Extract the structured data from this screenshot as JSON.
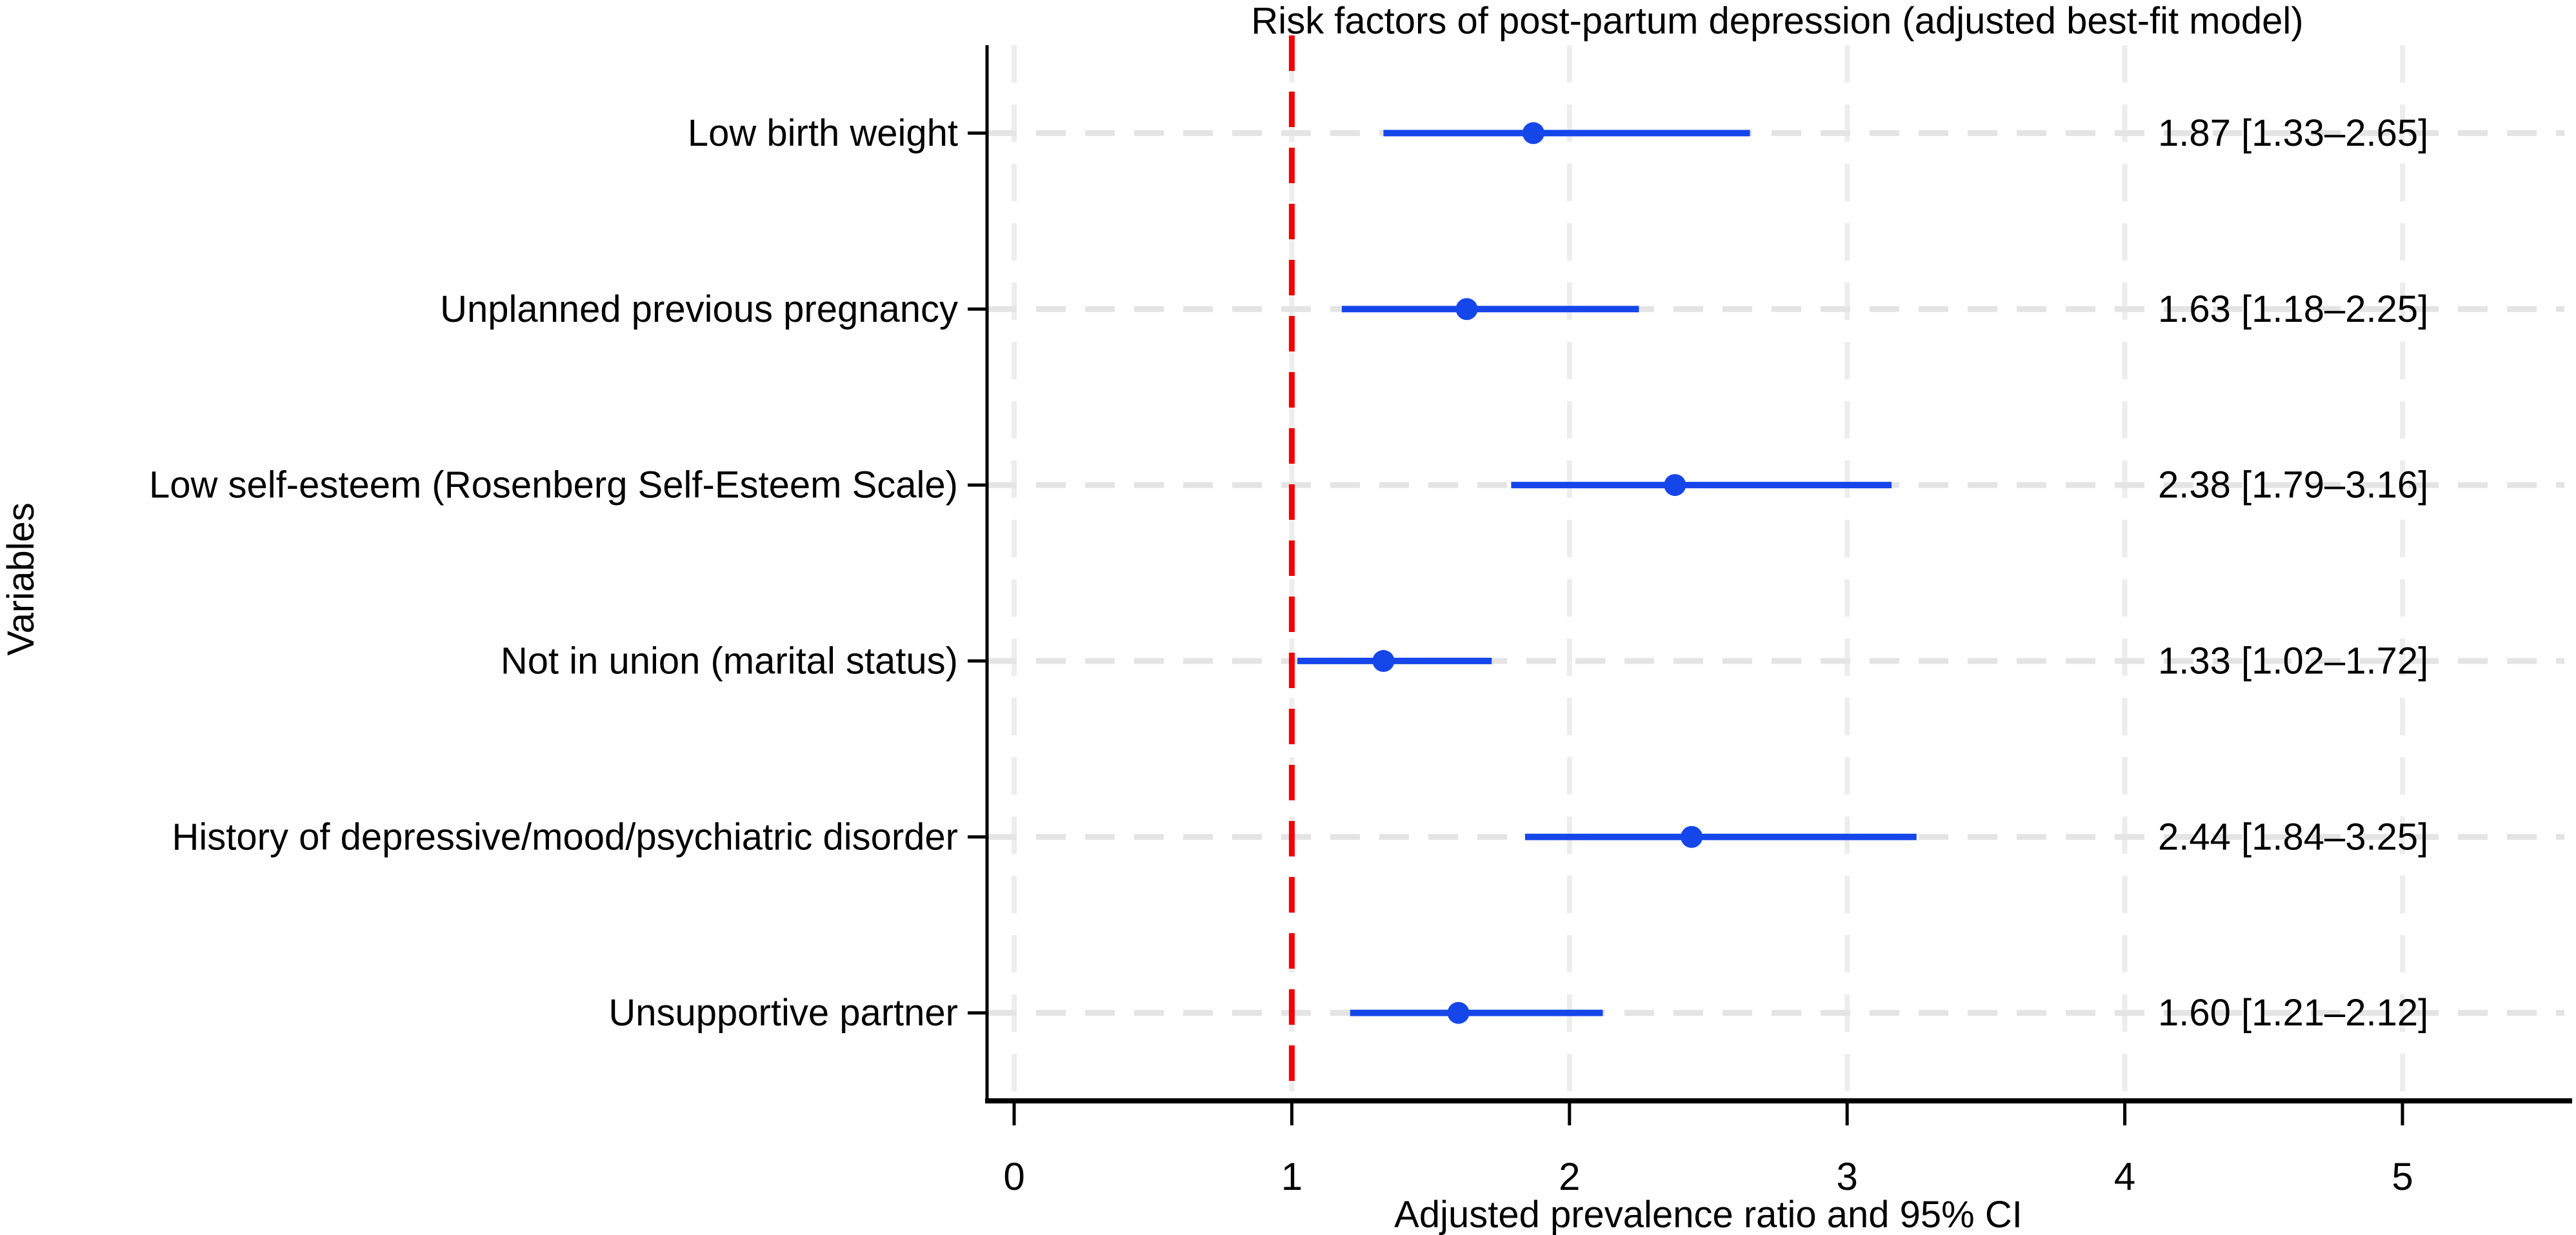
{
  "colors": {
    "series_blue": "#1546ea",
    "reference_line_red": "#f40000",
    "row_gridline_gray": "#e4e4e4",
    "tick_gridline_gray": "#ededed",
    "axis_black": "#000000",
    "background": "#ffffff",
    "text": "#000000"
  },
  "chart_data": {
    "type": "scatter",
    "subtype": "forest-plot",
    "title": "Risk factors of post-partum depression (adjusted best-fit model)",
    "xlabel": "Adjusted prevalence ratio and 95% CI",
    "ylabel": "Variables",
    "xlim": [
      0,
      5.6
    ],
    "xticks": [
      0,
      1,
      2,
      3,
      4,
      5
    ],
    "xtick_labels": [
      "0",
      "1",
      "2",
      "3",
      "4",
      "5"
    ],
    "reference_line_x": 1,
    "grid": {
      "horizontal": "light gray dashed line at each row",
      "vertical": "light gray dashed line at each x tick"
    },
    "legend": "none",
    "rows": [
      {
        "label": "Low birth weight",
        "estimate": 1.87,
        "ci_low": 1.33,
        "ci_high": 2.65,
        "annotation": "1.87 [1.33–2.65]"
      },
      {
        "label": "Unplanned previous pregnancy",
        "estimate": 1.63,
        "ci_low": 1.18,
        "ci_high": 2.25,
        "annotation": "1.63 [1.18–2.25]"
      },
      {
        "label": "Low self-esteem (Rosenberg Self-Esteem Scale)",
        "estimate": 2.38,
        "ci_low": 1.79,
        "ci_high": 3.16,
        "annotation": "2.38 [1.79–3.16]"
      },
      {
        "label": "Not in union (marital status)",
        "estimate": 1.33,
        "ci_low": 1.02,
        "ci_high": 1.72,
        "annotation": "1.33 [1.02–1.72]"
      },
      {
        "label": "History of depressive/mood/psychiatric disorder",
        "estimate": 2.44,
        "ci_low": 1.84,
        "ci_high": 3.25,
        "annotation": "2.44 [1.84–3.25]"
      },
      {
        "label": "Unsupportive partner",
        "estimate": 1.6,
        "ci_low": 1.21,
        "ci_high": 2.12,
        "annotation": "1.60 [1.21–2.12]"
      }
    ]
  }
}
